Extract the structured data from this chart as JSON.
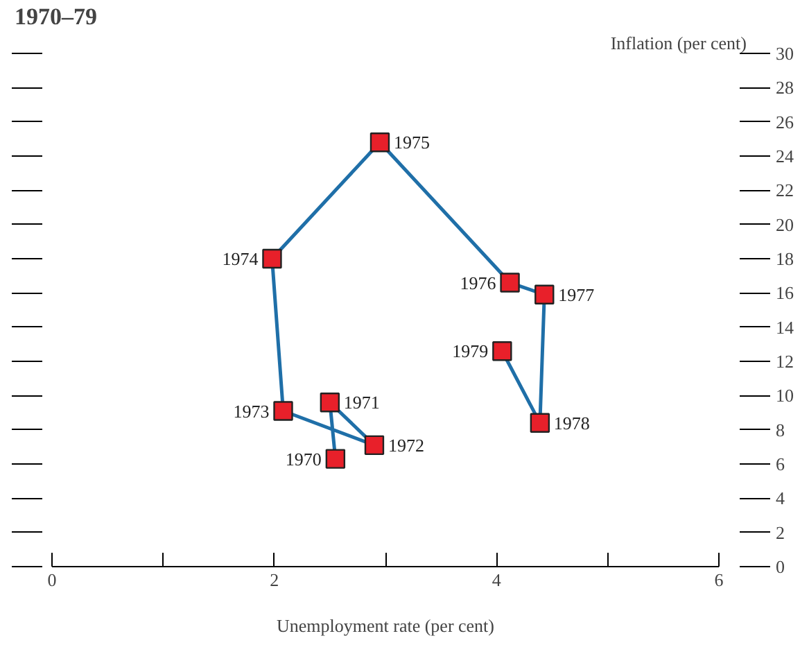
{
  "chart_data": {
    "type": "line",
    "title": "1970–79",
    "xlabel": "Unemployment rate (per cent)",
    "ylabel": "Inflation (per cent)",
    "x": [
      2.55,
      2.5,
      2.9,
      2.08,
      1.98,
      2.95,
      4.12,
      4.43,
      4.39,
      4.05
    ],
    "series": [
      {
        "color": "#1f6fa8",
        "colors": [
          "#e8202a",
          "#e8202a",
          "#e8202a",
          "#e8202a",
          "#e8202a",
          "#e8202a",
          "#e8202a",
          "#e8202a",
          "#e8202a",
          "#e8202a"
        ],
        "values": [
          6.3,
          9.6,
          7.1,
          9.1,
          18.0,
          24.8,
          16.6,
          15.9,
          8.4,
          12.6
        ]
      }
    ],
    "annotations": [
      {
        "text": "1970",
        "x": 2.55,
        "y": 6.3
      },
      {
        "text": "1971",
        "x": 2.5,
        "y": 9.6
      },
      {
        "text": "1972",
        "x": 2.9,
        "y": 7.1
      },
      {
        "text": "1973",
        "x": 2.08,
        "y": 9.1
      },
      {
        "text": "1974",
        "x": 1.98,
        "y": 18.0
      },
      {
        "text": "1975",
        "x": 2.95,
        "y": 24.8
      },
      {
        "text": "1976",
        "x": 4.12,
        "y": 16.6
      },
      {
        "text": "1977",
        "x": 4.43,
        "y": 15.9
      },
      {
        "text": "1978",
        "x": 4.39,
        "y": 8.4
      },
      {
        "text": "1979",
        "x": 4.05,
        "y": 12.6
      }
    ],
    "xlim": [
      0,
      6
    ],
    "ylim": [
      0,
      30
    ],
    "xticks": [
      0,
      {
        "value": 1,
        "label": null
      },
      2,
      {
        "value": 3,
        "label": null
      },
      4,
      {
        "value": 5,
        "label": null
      },
      6
    ],
    "yticks": [
      0,
      2,
      4,
      6,
      8,
      10,
      12,
      14,
      16,
      18,
      20,
      22,
      24,
      26,
      28,
      30
    ],
    "marker": "square",
    "line_style": "solid",
    "grid": false
  }
}
